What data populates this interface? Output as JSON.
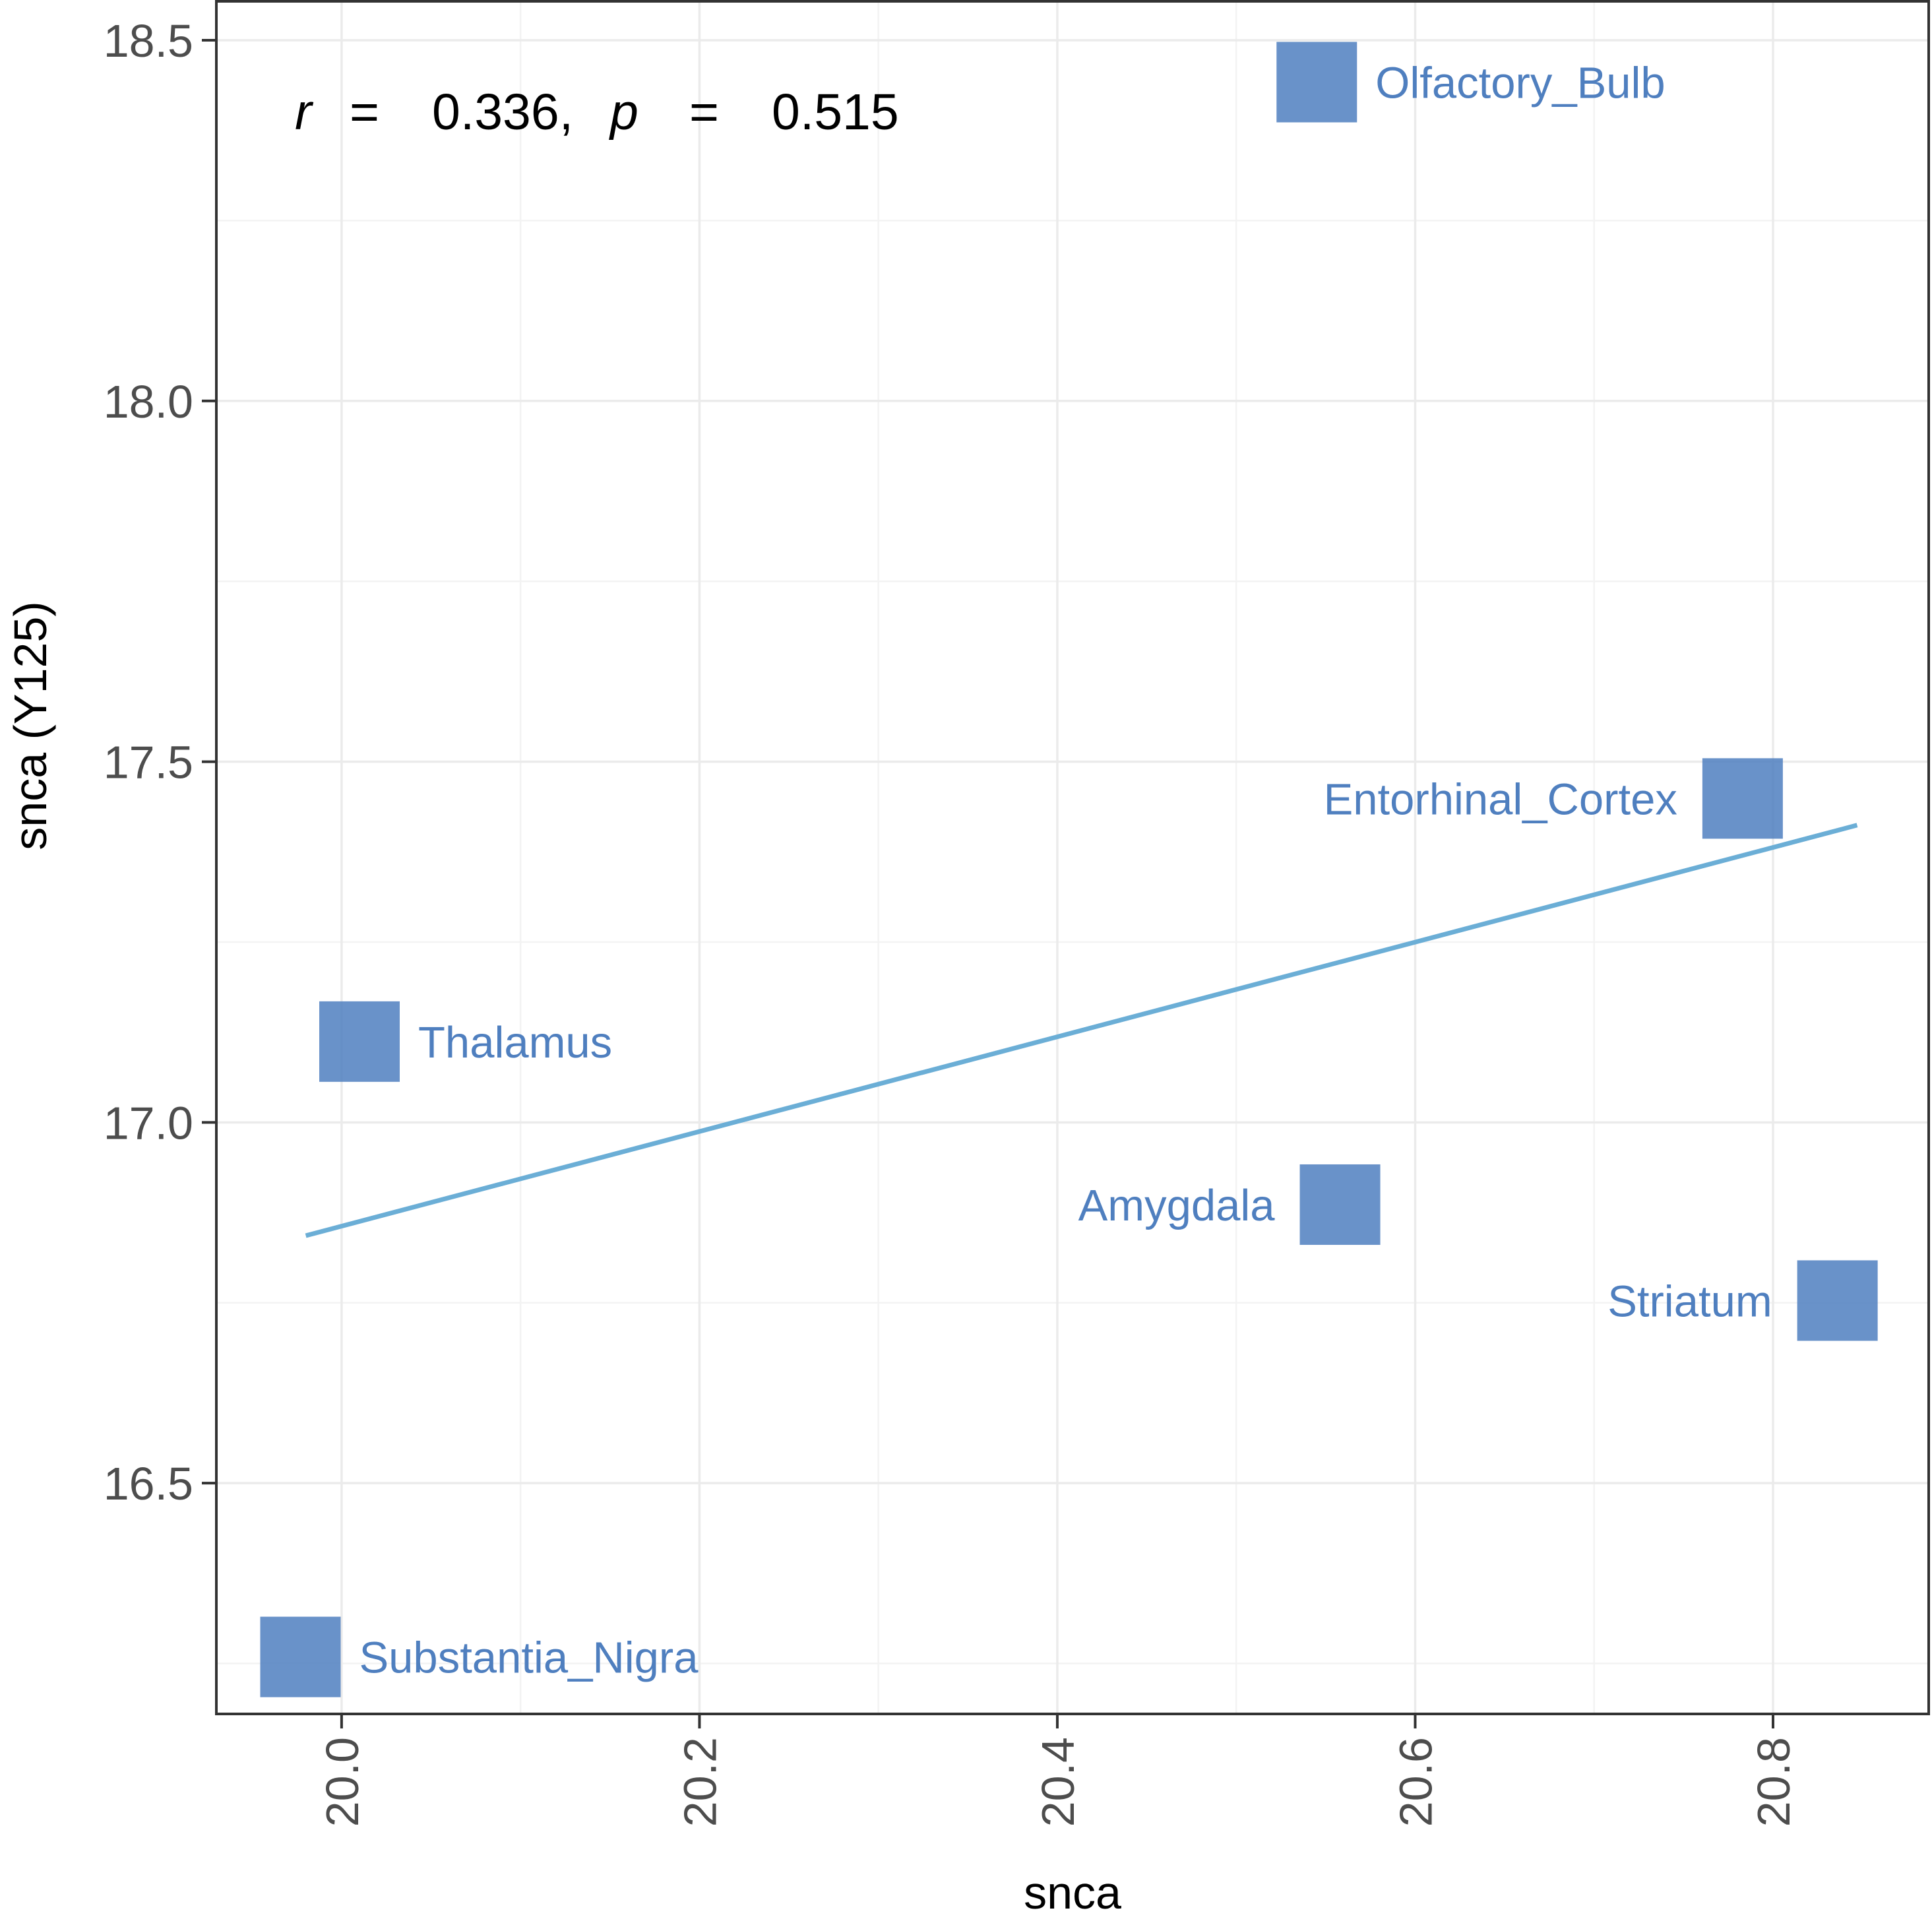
{
  "chart_data": {
    "type": "scatter",
    "xlabel": "snca",
    "ylabel": "snca (Y125)",
    "xlim": [
      19.93,
      20.887
    ],
    "ylim": [
      16.18,
      18.554
    ],
    "x_ticks": [
      20.0,
      20.2,
      20.4,
      20.6,
      20.8
    ],
    "x_tick_labels": [
      "20.0",
      "20.2",
      "20.4",
      "20.6",
      "20.8"
    ],
    "y_ticks": [
      16.5,
      17.0,
      17.5,
      18.0,
      18.5
    ],
    "y_tick_labels": [
      "16.5",
      "17.0",
      "17.5",
      "18.0",
      "18.5"
    ],
    "grid": true,
    "marker": "square",
    "point_color": "#4f7fbf",
    "line_color": "#6baed6",
    "points": [
      {
        "label": "Olfactory_Bulb",
        "x": 20.545,
        "y": 18.442,
        "label_side": "right"
      },
      {
        "label": "Entorhinal_Cortex",
        "x": 20.783,
        "y": 17.449,
        "label_side": "left"
      },
      {
        "label": "Thalamus",
        "x": 20.01,
        "y": 17.112,
        "label_side": "right"
      },
      {
        "label": "Amygdala",
        "x": 20.558,
        "y": 16.886,
        "label_side": "left"
      },
      {
        "label": "Striatum",
        "x": 20.836,
        "y": 16.753,
        "label_side": "left"
      },
      {
        "label": "Substantia_Nigra",
        "x": 19.977,
        "y": 16.259,
        "label_side": "right"
      }
    ],
    "trend_line": {
      "x": [
        19.98,
        20.847
      ],
      "y": [
        16.843,
        17.412
      ]
    },
    "annotation": {
      "r_symbol": "r",
      "eq1": "=",
      "r_value": "0.336,",
      "p_symbol": "p",
      "eq2": "=",
      "p_value": "0.515"
    }
  }
}
